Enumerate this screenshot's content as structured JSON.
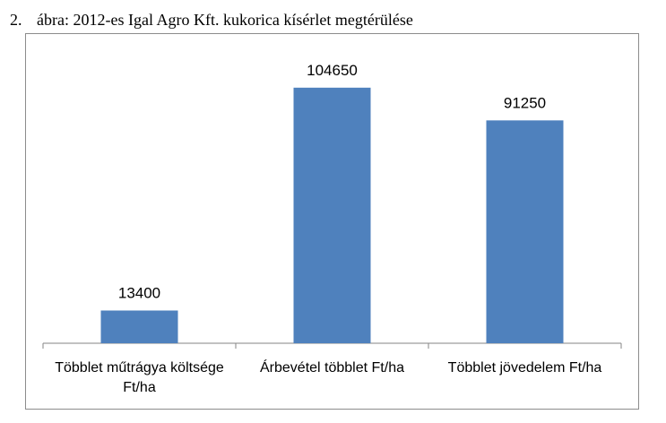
{
  "caption": {
    "number": "2.",
    "text": "ábra: 2012-es Igal Agro Kft. kukorica kísérlet megtérülése"
  },
  "chart_data": {
    "type": "bar",
    "title": "",
    "xlabel": "",
    "ylabel": "",
    "categories": [
      [
        "Többlet műtrágya költsége",
        "Ft/ha"
      ],
      [
        "Árbevétel többlet Ft/ha"
      ],
      [
        "Többlet jövedelem Ft/ha"
      ]
    ],
    "values": [
      13400,
      104650,
      91250
    ],
    "data_labels": [
      "13400",
      "104650",
      "91250"
    ],
    "ylim": [
      0,
      120000
    ],
    "bar_color": "#4F81BD",
    "axis_color": "#868686",
    "grid": false,
    "legend": "none"
  }
}
